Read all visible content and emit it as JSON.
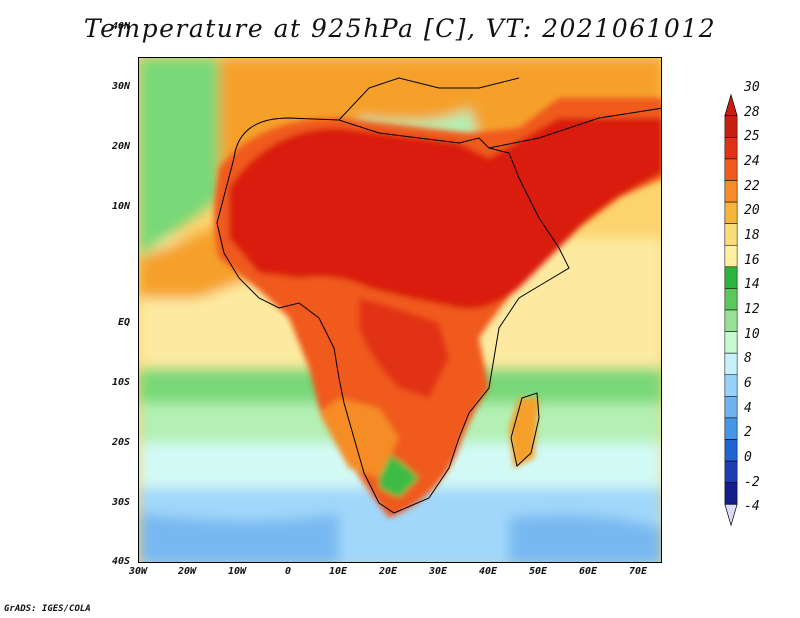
{
  "title": "Temperature at 925hPa [C], VT: 2021061012",
  "credit": "GrADS: IGES/COLA",
  "lat_labels": [
    "40N",
    "30N",
    "20N",
    "10N",
    "EQ",
    "10S",
    "20S",
    "30S",
    "40S"
  ],
  "lon_labels": [
    "30W",
    "20W",
    "10W",
    "0",
    "10E",
    "20E",
    "30E",
    "40E",
    "50E",
    "60E",
    "70E"
  ],
  "colorbar": {
    "labels": [
      "30",
      "28",
      "25",
      "24",
      "22",
      "20",
      "18",
      "16",
      "14",
      "12",
      "10",
      "8",
      "6",
      "4",
      "2",
      "0",
      "-2",
      "-4"
    ],
    "colors": [
      "#c81e0f",
      "#e23216",
      "#f05a1e",
      "#f58c28",
      "#f7b43c",
      "#fadc78",
      "#fff0a0",
      "#2db43c",
      "#5ac85a",
      "#96e196",
      "#c8fad2",
      "#c8f0fa",
      "#96d2fa",
      "#6eb4f0",
      "#4696e6",
      "#1e64d2",
      "#1e3cb4",
      "#141e8c"
    ],
    "arrow_top_color": "#c81e0f",
    "arrow_bottom_color": "#dcdcfa"
  },
  "map_colors": {
    "hot": "#d91e0f",
    "warm": "#f05a1e",
    "orange": "#f5a02a",
    "yellow": "#fbd46e",
    "pale_yellow": "#fdeaa0",
    "green": "#3cbc44",
    "light_green": "#78d878",
    "pale_green": "#b4f0b4",
    "cyan": "#d2faf5",
    "light_blue": "#a0d7fa",
    "blue": "#78b8f0",
    "coast": "#000000"
  }
}
